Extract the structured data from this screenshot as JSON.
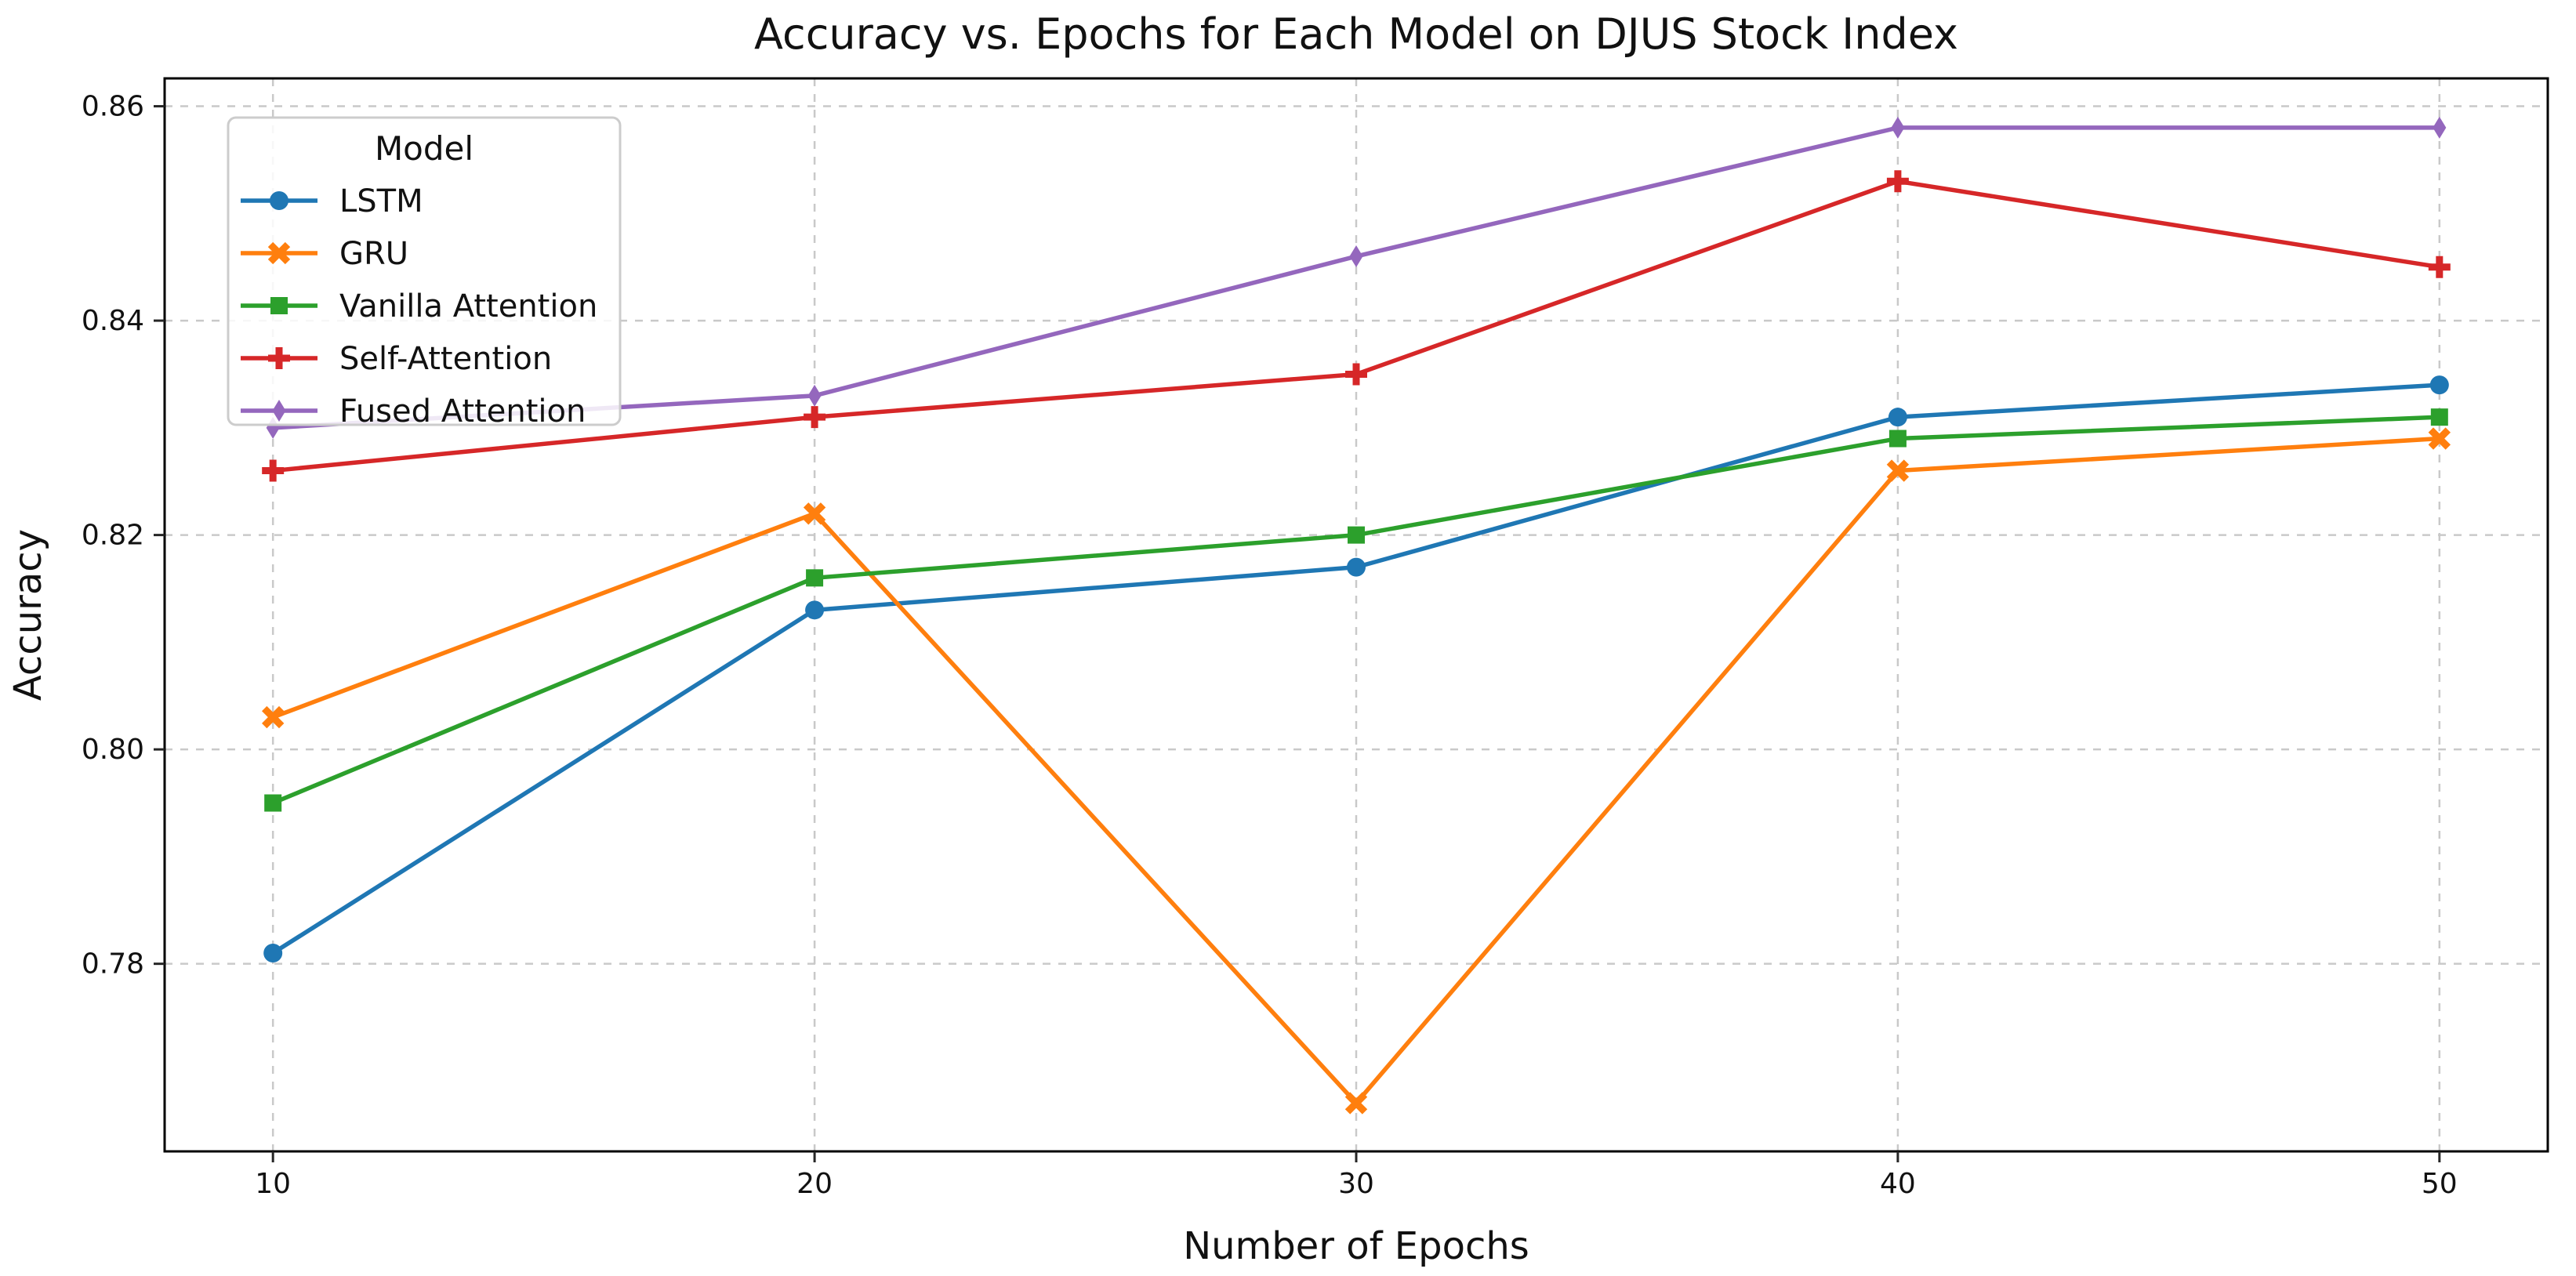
{
  "chart_data": {
    "type": "line",
    "title": "Accuracy vs. Epochs for Each Model on DJUS Stock Index",
    "xlabel": "Number of Epochs",
    "ylabel": "Accuracy",
    "x": [
      10,
      20,
      30,
      40,
      50
    ],
    "xtick_labels": [
      "10",
      "20",
      "30",
      "40",
      "50"
    ],
    "yticks": [
      0.78,
      0.8,
      0.82,
      0.84,
      0.86
    ],
    "ytick_labels": [
      "0.78",
      "0.80",
      "0.82",
      "0.84",
      "0.86"
    ],
    "xlim": [
      8,
      52
    ],
    "ylim": [
      0.7625,
      0.8626
    ],
    "grid": true,
    "grid_style": "dashed",
    "legend": {
      "title": "Model",
      "position": "upper left"
    },
    "series": [
      {
        "name": "LSTM",
        "color": "#1f77b4",
        "marker": "circle",
        "values": [
          0.781,
          0.813,
          0.817,
          0.831,
          0.834
        ]
      },
      {
        "name": "GRU",
        "color": "#ff7f0e",
        "marker": "x",
        "values": [
          0.803,
          0.822,
          0.767,
          0.826,
          0.829
        ]
      },
      {
        "name": "Vanilla Attention",
        "color": "#2ca02c",
        "marker": "square",
        "values": [
          0.795,
          0.816,
          0.82,
          0.829,
          0.831
        ]
      },
      {
        "name": "Self-Attention",
        "color": "#d62728",
        "marker": "plus",
        "values": [
          0.826,
          0.831,
          0.835,
          0.853,
          0.845
        ]
      },
      {
        "name": "Fused Attention",
        "color": "#9467bd",
        "marker": "diamond",
        "values": [
          0.83,
          0.833,
          0.846,
          0.858,
          0.858
        ]
      }
    ],
    "colors": {
      "grid": "#c9c9c9",
      "spine": "#000000",
      "tick": "#262626",
      "text": "#111111",
      "legend_border": "#cccccc",
      "background": "#ffffff"
    }
  }
}
